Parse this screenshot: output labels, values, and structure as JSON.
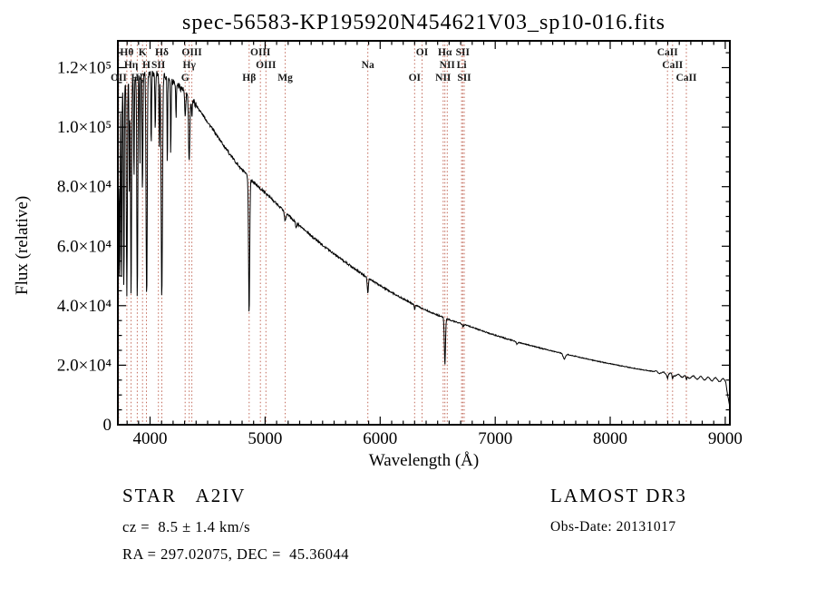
{
  "chart_data": {
    "type": "line",
    "title": "spec-56583-KP195920N454621V03_sp10-016.fits",
    "xlabel": "Wavelength (Å)",
    "ylabel": "Flux (relative)",
    "xlim": [
      3720,
      9040
    ],
    "ylim": [
      0,
      129000
    ],
    "x_major_ticks": [
      4000,
      5000,
      6000,
      7000,
      8000,
      9000
    ],
    "x_tick_labels": [
      "4000",
      "5000",
      "6000",
      "7000",
      "8000",
      "9000"
    ],
    "x_minor_step": 100,
    "y_major_ticks": [
      0,
      20000,
      40000,
      60000,
      80000,
      100000,
      120000
    ],
    "y_tick_labels": [
      "0",
      "2.0×10⁴",
      "4.0×10⁴",
      "6.0×10⁴",
      "8.0×10⁴",
      "1.0×10⁵",
      "1.2×10⁵"
    ],
    "y_minor_step": 5000,
    "line_color": "#000000",
    "marker_line_color": "#c26a5a",
    "label_color": "#1a1a1a",
    "spectral_lines": [
      {
        "label": "OII",
        "wavelength": 3727,
        "row": 2
      },
      {
        "label": "Hθ",
        "wavelength": 3798,
        "row": 0
      },
      {
        "label": "Hη",
        "wavelength": 3835,
        "row": 1
      },
      {
        "label": "Hζ",
        "wavelength": 3889,
        "row": 2
      },
      {
        "label": "K",
        "wavelength": 3934,
        "row": 0
      },
      {
        "label": "H",
        "wavelength": 3968,
        "row": 1
      },
      {
        "label": "SII",
        "wavelength": 4072,
        "row": 1
      },
      {
        "label": "Hδ",
        "wavelength": 4102,
        "row": 0
      },
      {
        "label": "G",
        "wavelength": 4305,
        "row": 2
      },
      {
        "label": "Hγ",
        "wavelength": 4340,
        "row": 1
      },
      {
        "label": "OIII",
        "wavelength": 4363,
        "row": 0
      },
      {
        "label": "Hβ",
        "wavelength": 4861,
        "row": 2
      },
      {
        "label": "OIII",
        "wavelength": 4959,
        "row": 0
      },
      {
        "label": "OIII",
        "wavelength": 5007,
        "row": 1
      },
      {
        "label": "Mg",
        "wavelength": 5175,
        "row": 2
      },
      {
        "label": "Na",
        "wavelength": 5893,
        "row": 1
      },
      {
        "label": "OI",
        "wavelength": 6300,
        "row": 2
      },
      {
        "label": "OI",
        "wavelength": 6364,
        "row": 0
      },
      {
        "label": "NII",
        "wavelength": 6548,
        "row": 2
      },
      {
        "label": "Hα",
        "wavelength": 6563,
        "row": 0
      },
      {
        "label": "NII",
        "wavelength": 6583,
        "row": 1
      },
      {
        "label": "Li",
        "wavelength": 6708,
        "row": 1
      },
      {
        "label": "SII",
        "wavelength": 6717,
        "row": 0
      },
      {
        "label": "SII",
        "wavelength": 6731,
        "row": 2
      },
      {
        "label": "CaII",
        "wavelength": 8498,
        "row": 0
      },
      {
        "label": "CaII",
        "wavelength": 8542,
        "row": 1
      },
      {
        "label": "CaII",
        "wavelength": 8662,
        "row": 2
      }
    ],
    "continuum": [
      [
        3720,
        113000
      ],
      [
        3760,
        115000
      ],
      [
        3800,
        116000
      ],
      [
        3860,
        117000
      ],
      [
        3920,
        117500
      ],
      [
        3980,
        118000
      ],
      [
        4060,
        118000
      ],
      [
        4140,
        117000
      ],
      [
        4220,
        115000
      ],
      [
        4300,
        112000
      ],
      [
        4380,
        108500
      ],
      [
        4460,
        104000
      ],
      [
        4540,
        99500
      ],
      [
        4620,
        95000
      ],
      [
        4700,
        90500
      ],
      [
        4780,
        86500
      ],
      [
        4860,
        83000
      ],
      [
        4940,
        80000
      ],
      [
        5000,
        78000
      ],
      [
        5080,
        75000
      ],
      [
        5160,
        72000
      ],
      [
        5240,
        69000
      ],
      [
        5320,
        66200
      ],
      [
        5400,
        63500
      ],
      [
        5480,
        61000
      ],
      [
        5560,
        58600
      ],
      [
        5640,
        56300
      ],
      [
        5720,
        54000
      ],
      [
        5800,
        51800
      ],
      [
        5880,
        49700
      ],
      [
        5960,
        47700
      ],
      [
        6040,
        45800
      ],
      [
        6120,
        44000
      ],
      [
        6200,
        42300
      ],
      [
        6280,
        40700
      ],
      [
        6360,
        39200
      ],
      [
        6440,
        37800
      ],
      [
        6520,
        36500
      ],
      [
        6600,
        35300
      ],
      [
        6680,
        34300
      ],
      [
        6760,
        33300
      ],
      [
        6840,
        32200
      ],
      [
        6920,
        31100
      ],
      [
        7000,
        30100
      ],
      [
        7080,
        29100
      ],
      [
        7160,
        28200
      ],
      [
        7240,
        27300
      ],
      [
        7320,
        26500
      ],
      [
        7400,
        25700
      ],
      [
        7480,
        24900
      ],
      [
        7560,
        24200
      ],
      [
        7640,
        23500
      ],
      [
        7720,
        22800
      ],
      [
        7800,
        22100
      ],
      [
        7880,
        21400
      ],
      [
        7960,
        20800
      ],
      [
        8040,
        20200
      ],
      [
        8120,
        19600
      ],
      [
        8200,
        19000
      ],
      [
        8280,
        18500
      ],
      [
        8360,
        18000
      ],
      [
        8440,
        17500
      ],
      [
        8520,
        17000
      ],
      [
        8600,
        16500
      ],
      [
        8680,
        16100
      ],
      [
        8760,
        15800
      ],
      [
        8840,
        15500
      ],
      [
        8920,
        15200
      ],
      [
        9000,
        14800
      ],
      [
        9040,
        14400
      ]
    ],
    "absorption_lines": [
      [
        3712,
        70000,
        5
      ],
      [
        3724,
        68000,
        5
      ],
      [
        3736,
        66000,
        5
      ],
      [
        3752,
        68000,
        5
      ],
      [
        3772,
        70000,
        5
      ],
      [
        3798,
        73000,
        6
      ],
      [
        3820,
        40000,
        4
      ],
      [
        3835,
        74000,
        6
      ],
      [
        3860,
        35000,
        4
      ],
      [
        3889,
        75000,
        6
      ],
      [
        3912,
        30000,
        4
      ],
      [
        3934,
        40000,
        5
      ],
      [
        3970,
        76000,
        7
      ],
      [
        4010,
        25000,
        4
      ],
      [
        4045,
        20000,
        4
      ],
      [
        4080,
        25000,
        4
      ],
      [
        4102,
        76000,
        8
      ],
      [
        4150,
        30000,
        4
      ],
      [
        4180,
        25000,
        4
      ],
      [
        4226,
        12000,
        4
      ],
      [
        4305,
        9000,
        6
      ],
      [
        4340,
        22000,
        8
      ],
      [
        4363,
        6000,
        4
      ],
      [
        4861,
        46000,
        7
      ],
      [
        5175,
        3000,
        9
      ],
      [
        5270,
        1500,
        8
      ],
      [
        5893,
        5200,
        7
      ],
      [
        6300,
        1600,
        5
      ],
      [
        6563,
        15800,
        7
      ],
      [
        6720,
        800,
        8
      ],
      [
        7190,
        800,
        10
      ],
      [
        7600,
        1800,
        14
      ],
      [
        8498,
        1300,
        6
      ],
      [
        8542,
        1500,
        6
      ],
      [
        8662,
        1400,
        6
      ]
    ],
    "noise": {
      "blue_amp": 1200,
      "mid_amp": 450,
      "red_frac": 0.006,
      "red_min": 120
    },
    "fringe": {
      "start": 8380,
      "period": 65,
      "base_amp": 300,
      "amp_slope": 0.55,
      "max_amp": 650
    },
    "edge_drop": {
      "start": 9005,
      "slope": 260
    }
  },
  "footer": {
    "left": {
      "line1": "STAR   A2IV",
      "line2": "cz =  8.5 ± 1.4 km/s",
      "line3": "RA = 297.02075, DEC =  45.36044"
    },
    "right": {
      "line1": "LAMOST DR3",
      "line2": "Obs-Date: 20131017"
    }
  }
}
